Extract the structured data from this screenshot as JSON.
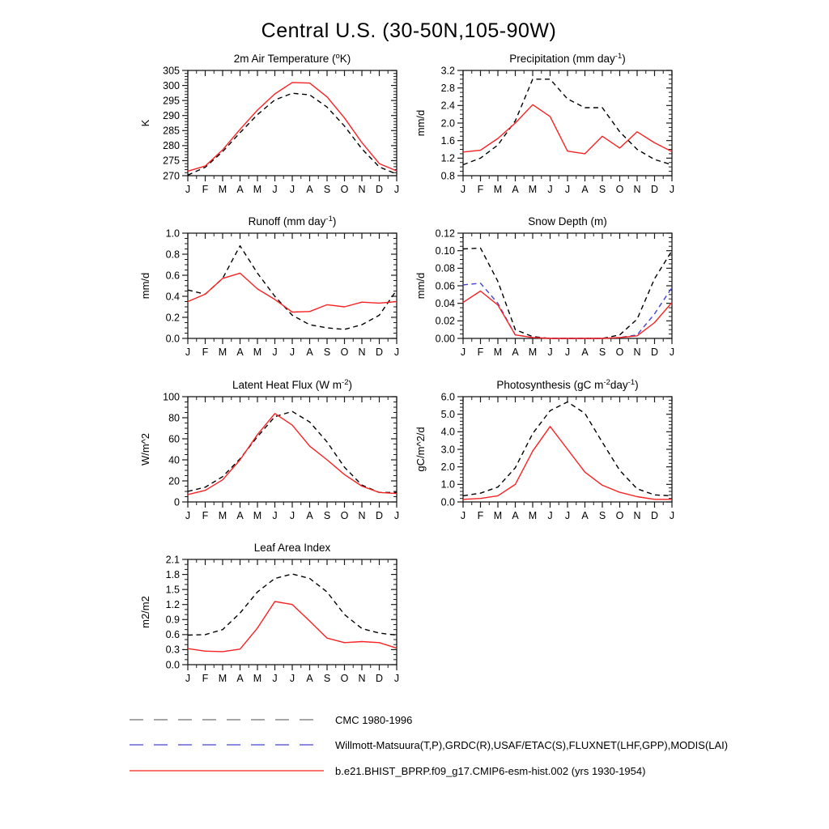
{
  "title": "Central U.S. (30-50N,105-90W)",
  "months": [
    "J",
    "F",
    "M",
    "A",
    "M",
    "J",
    "J",
    "A",
    "S",
    "O",
    "N",
    "D",
    "J"
  ],
  "colors": {
    "model_red": "#f82222",
    "obs_black": "#000000",
    "obs_blue": "#4343d0",
    "legend_gray": "#707070",
    "axis": "#1a1a1a"
  },
  "legend": {
    "items": [
      {
        "key": "cmc",
        "label": "CMC 1980-1996",
        "color": "#707070",
        "style": "dashed"
      },
      {
        "key": "obs",
        "label": "Willmott-Matsuura(T,P),GRDC(R),USAF/ETAC(S),FLUXNET(LHF,GPP),MODIS(LAI)",
        "color": "#4343d0",
        "style": "dashed"
      },
      {
        "key": "model",
        "label": "b.e21.BHIST_BPRP.f09_g17.CMIP6-esm-hist.002 (yrs 1930-1954)",
        "color": "#f82222",
        "style": "solid"
      }
    ]
  },
  "chart_data": [
    {
      "id": "air-temperature",
      "type": "line",
      "title_plain": "2m Air Temperature (oK)",
      "title_segments": [
        {
          "t": "2m Air Temperature ("
        },
        {
          "t": "o",
          "sup": true
        },
        {
          "t": "K)"
        }
      ],
      "ylabel": "K",
      "ylim": [
        270,
        305
      ],
      "yticks": [
        270,
        275,
        280,
        285,
        290,
        295,
        300,
        305
      ],
      "ytick_decimals": 0,
      "y_minor_divisions": 5,
      "series": [
        {
          "key": "obs",
          "name": "Willmott-Matsuura(T,P),GRDC(R),USAF/ETAC(S),FLUXNET(LHF,GPP),MODIS(LAI)",
          "color": "#000000",
          "dashed": true,
          "values": [
            270.2,
            272.8,
            278.0,
            284.3,
            290.3,
            295.2,
            297.4,
            296.9,
            292.8,
            286.5,
            278.9,
            272.9,
            270.5
          ]
        },
        {
          "key": "model",
          "name": "b.e21.BHIST_BPRP.f09_g17.CMIP6-esm-hist.002 (yrs 1930-1954)",
          "color": "#f82222",
          "dashed": false,
          "values": [
            271.5,
            273.2,
            278.6,
            285.4,
            291.8,
            297.2,
            301.0,
            300.8,
            296.2,
            289.2,
            281.0,
            274.0,
            271.6
          ]
        }
      ]
    },
    {
      "id": "precipitation",
      "type": "line",
      "title_plain": "Precipitation (mm day-1)",
      "title_segments": [
        {
          "t": "Precipitation (mm day"
        },
        {
          "t": "-1",
          "sup": true
        },
        {
          "t": ")"
        }
      ],
      "ylabel": "mm/d",
      "ylim": [
        0.8,
        3.2
      ],
      "yticks": [
        0.8,
        1.2,
        1.6,
        2.0,
        2.4,
        2.8,
        3.2
      ],
      "ytick_decimals": 1,
      "y_minor_divisions": 4,
      "series": [
        {
          "key": "obs",
          "name": "Willmott-Matsuura(T,P),GRDC(R),USAF/ETAC(S),FLUXNET(LHF,GPP),MODIS(LAI)",
          "color": "#000000",
          "dashed": true,
          "values": [
            1.05,
            1.2,
            1.5,
            2.05,
            3.0,
            3.0,
            2.55,
            2.35,
            2.35,
            1.8,
            1.4,
            1.17,
            1.05
          ]
        },
        {
          "key": "model",
          "name": "b.e21.BHIST_BPRP.f09_g17.CMIP6-esm-hist.002 (yrs 1930-1954)",
          "color": "#f82222",
          "dashed": false,
          "values": [
            1.34,
            1.38,
            1.65,
            2.0,
            2.42,
            2.15,
            1.36,
            1.3,
            1.7,
            1.43,
            1.8,
            1.55,
            1.35
          ]
        }
      ]
    },
    {
      "id": "runoff",
      "type": "line",
      "title_plain": "Runoff (mm day-1)",
      "title_segments": [
        {
          "t": "Runoff (mm day"
        },
        {
          "t": "-1",
          "sup": true
        },
        {
          "t": ")"
        }
      ],
      "ylabel": "mm/d",
      "ylim": [
        0.0,
        1.0
      ],
      "yticks": [
        0.0,
        0.2,
        0.4,
        0.6,
        0.8,
        1.0
      ],
      "ytick_decimals": 1,
      "y_minor_divisions": 4,
      "series": [
        {
          "key": "obs",
          "name": "Willmott-Matsuura(T,P),GRDC(R),USAF/ETAC(S),FLUXNET(LHF,GPP),MODIS(LAI)",
          "color": "#000000",
          "dashed": true,
          "values": [
            0.46,
            0.42,
            0.57,
            0.88,
            0.62,
            0.4,
            0.22,
            0.13,
            0.1,
            0.085,
            0.13,
            0.22,
            0.46
          ]
        },
        {
          "key": "model",
          "name": "b.e21.BHIST_BPRP.f09_g17.CMIP6-esm-hist.002 (yrs 1930-1954)",
          "color": "#f82222",
          "dashed": false,
          "values": [
            0.35,
            0.42,
            0.57,
            0.62,
            0.47,
            0.37,
            0.25,
            0.255,
            0.32,
            0.3,
            0.345,
            0.335,
            0.35
          ]
        }
      ]
    },
    {
      "id": "snow-depth",
      "type": "line",
      "title_plain": "Snow Depth (m)",
      "title_segments": [
        {
          "t": "Snow Depth (m)"
        }
      ],
      "ylabel": "mm/d",
      "ylim": [
        0.0,
        0.12
      ],
      "yticks": [
        0.0,
        0.02,
        0.04,
        0.06,
        0.08,
        0.1,
        0.12
      ],
      "ytick_decimals": 2,
      "y_minor_divisions": 4,
      "series": [
        {
          "key": "cmc",
          "name": "CMC 1980-1996",
          "color": "#000000",
          "dashed": true,
          "values": [
            0.102,
            0.103,
            0.065,
            0.01,
            0.002,
            0.0,
            0.0,
            0.0,
            0.0,
            0.004,
            0.022,
            0.068,
            0.1
          ]
        },
        {
          "key": "obs",
          "name": "Willmott-Matsuura(T,P),GRDC(R),USAF/ETAC(S),FLUXNET(LHF,GPP),MODIS(LAI)",
          "color": "#4343d0",
          "dashed": true,
          "values": [
            0.061,
            0.063,
            0.04,
            0.004,
            0.001,
            0.0,
            0.0,
            0.0,
            0.0,
            0.001,
            0.004,
            0.028,
            0.058
          ]
        },
        {
          "key": "model",
          "name": "b.e21.BHIST_BPRP.f09_g17.CMIP6-esm-hist.002 (yrs 1930-1954)",
          "color": "#f82222",
          "dashed": false,
          "values": [
            0.041,
            0.054,
            0.038,
            0.004,
            0.001,
            0.0,
            0.0,
            0.0,
            0.0,
            0.001,
            0.003,
            0.018,
            0.041
          ]
        }
      ]
    },
    {
      "id": "latent-heat-flux",
      "type": "line",
      "title_plain": "Latent Heat Flux (W m-2)",
      "title_segments": [
        {
          "t": "Latent Heat Flux (W m"
        },
        {
          "t": "-2",
          "sup": true
        },
        {
          "t": ")"
        }
      ],
      "ylabel": "W/m^2",
      "ylim": [
        0,
        100
      ],
      "yticks": [
        0,
        20,
        40,
        60,
        80,
        100
      ],
      "ytick_decimals": 0,
      "y_minor_divisions": 4,
      "series": [
        {
          "key": "obs",
          "name": "Willmott-Matsuura(T,P),GRDC(R),USAF/ETAC(S),FLUXNET(LHF,GPP),MODIS(LAI)",
          "color": "#000000",
          "dashed": true,
          "values": [
            10,
            14,
            24,
            41,
            62,
            81,
            86,
            76,
            57,
            33,
            16,
            9,
            9
          ]
        },
        {
          "key": "model",
          "name": "b.e21.BHIST_BPRP.f09_g17.CMIP6-esm-hist.002 (yrs 1930-1954)",
          "color": "#f82222",
          "dashed": false,
          "values": [
            7,
            11,
            21,
            40,
            64,
            84,
            73,
            53,
            40,
            26,
            15,
            9,
            8
          ]
        }
      ]
    },
    {
      "id": "photosynthesis",
      "type": "line",
      "title_plain": "Photosynthesis (gC m-2day-1)",
      "title_segments": [
        {
          "t": "Photosynthesis (gC m"
        },
        {
          "t": "-2",
          "sup": true
        },
        {
          "t": "day"
        },
        {
          "t": "-1",
          "sup": true
        },
        {
          "t": ")"
        }
      ],
      "ylabel": "gC/m^2/d",
      "ylim": [
        0.0,
        6.0
      ],
      "yticks": [
        0.0,
        1.0,
        2.0,
        3.0,
        4.0,
        5.0,
        6.0
      ],
      "ytick_decimals": 1,
      "y_minor_divisions": 5,
      "series": [
        {
          "key": "obs",
          "name": "Willmott-Matsuura(T,P),GRDC(R),USAF/ETAC(S),FLUXNET(LHF,GPP),MODIS(LAI)",
          "color": "#000000",
          "dashed": true,
          "values": [
            0.35,
            0.5,
            0.85,
            1.95,
            3.9,
            5.2,
            5.7,
            5.05,
            3.4,
            1.8,
            0.75,
            0.4,
            0.35
          ]
        },
        {
          "key": "model",
          "name": "b.e21.BHIST_BPRP.f09_g17.CMIP6-esm-hist.002 (yrs 1930-1954)",
          "color": "#f82222",
          "dashed": false,
          "values": [
            0.15,
            0.2,
            0.35,
            1.0,
            2.9,
            4.3,
            3.0,
            1.7,
            0.95,
            0.55,
            0.3,
            0.15,
            0.15
          ]
        }
      ]
    },
    {
      "id": "leaf-area-index",
      "type": "line",
      "title_plain": "Leaf Area Index",
      "title_segments": [
        {
          "t": "Leaf Area Index"
        }
      ],
      "ylabel": "m2/m2",
      "ylim": [
        0.0,
        2.1
      ],
      "yticks": [
        0.0,
        0.3,
        0.6,
        0.9,
        1.2,
        1.5,
        1.8,
        2.1
      ],
      "ytick_decimals": 1,
      "y_minor_divisions": 3,
      "series": [
        {
          "key": "obs",
          "name": "Willmott-Matsuura(T,P),GRDC(R),USAF/ETAC(S),FLUXNET(LHF,GPP),MODIS(LAI)",
          "color": "#000000",
          "dashed": true,
          "values": [
            0.59,
            0.6,
            0.7,
            1.03,
            1.45,
            1.72,
            1.81,
            1.72,
            1.45,
            1.0,
            0.72,
            0.63,
            0.59
          ]
        },
        {
          "key": "model",
          "name": "b.e21.BHIST_BPRP.f09_g17.CMIP6-esm-hist.002 (yrs 1930-1954)",
          "color": "#f82222",
          "dashed": false,
          "values": [
            0.32,
            0.27,
            0.26,
            0.31,
            0.73,
            1.26,
            1.2,
            0.87,
            0.53,
            0.44,
            0.46,
            0.44,
            0.33
          ]
        }
      ]
    }
  ]
}
